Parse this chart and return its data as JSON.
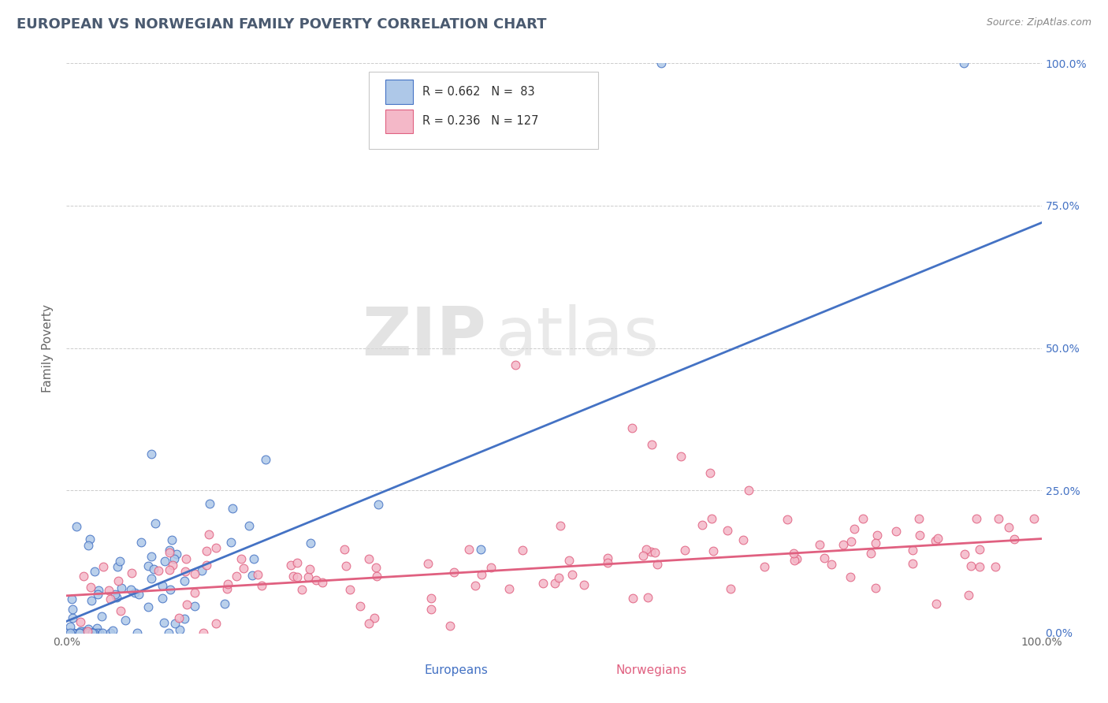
{
  "title": "EUROPEAN VS NORWEGIAN FAMILY POVERTY CORRELATION CHART",
  "source": "Source: ZipAtlas.com",
  "ylabel": "Family Poverty",
  "ytick_labels": [
    "0.0%",
    "25.0%",
    "50.0%",
    "75.0%",
    "100.0%"
  ],
  "ytick_values": [
    0.0,
    0.25,
    0.5,
    0.75,
    1.0
  ],
  "xtick_labels": [
    "0.0%",
    "100.0%"
  ],
  "xtick_values": [
    0.0,
    1.0
  ],
  "legend_entries": [
    {
      "label": "Europeans",
      "R": "0.662",
      "N": " 83",
      "color": "#aec8e8",
      "line_color": "#4472c4"
    },
    {
      "label": "Norwegians",
      "R": "0.236",
      "N": "127",
      "color": "#f4b8c8",
      "line_color": "#e06080"
    }
  ],
  "watermark_zip": "ZIP",
  "watermark_atlas": "atlas",
  "background_color": "#ffffff",
  "grid_color": "#cccccc",
  "title_color": "#4a5a70",
  "title_fontsize": 13,
  "eu_regression": {
    "slope": 0.7,
    "intercept": 0.02
  },
  "no_regression": {
    "slope": 0.1,
    "intercept": 0.065
  }
}
